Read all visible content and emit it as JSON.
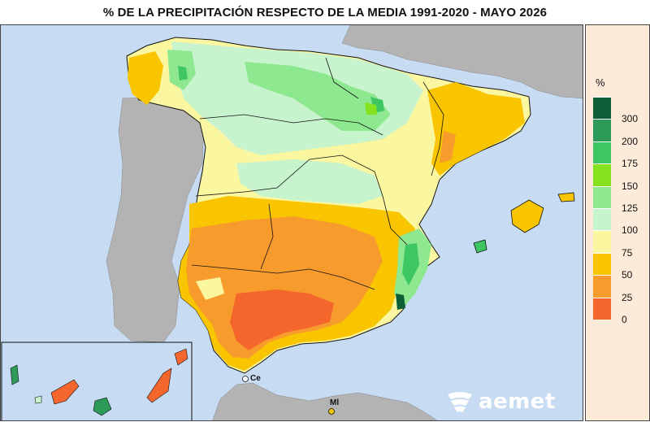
{
  "title": "% DE LA PRECIPITACIÓN RESPECTO DE LA MEDIA 1991-2020 - MAYO 2026",
  "legend": {
    "unit": "%",
    "classes": [
      {
        "label": "300",
        "color": "#0c5f37"
      },
      {
        "label": "200",
        "color": "#2e9a5a"
      },
      {
        "label": "175",
        "color": "#3dc662"
      },
      {
        "label": "150",
        "color": "#86e21f"
      },
      {
        "label": "125",
        "color": "#8ee88f"
      },
      {
        "label": "100",
        "color": "#c7f3cd"
      },
      {
        "label": "75",
        "color": "#fbf6a0"
      },
      {
        "label": "50",
        "color": "#f9c400"
      },
      {
        "label": "25",
        "color": "#f79b2d"
      },
      {
        "label": "0",
        "color": "#f5662d"
      }
    ]
  },
  "places": {
    "ceuta": "Ce",
    "melilla": "Ml"
  },
  "logo": {
    "text": "aemet"
  },
  "colors": {
    "sea": "#c7dcf2",
    "foreign_land": "#b3b3b3",
    "border": "#111111"
  }
}
